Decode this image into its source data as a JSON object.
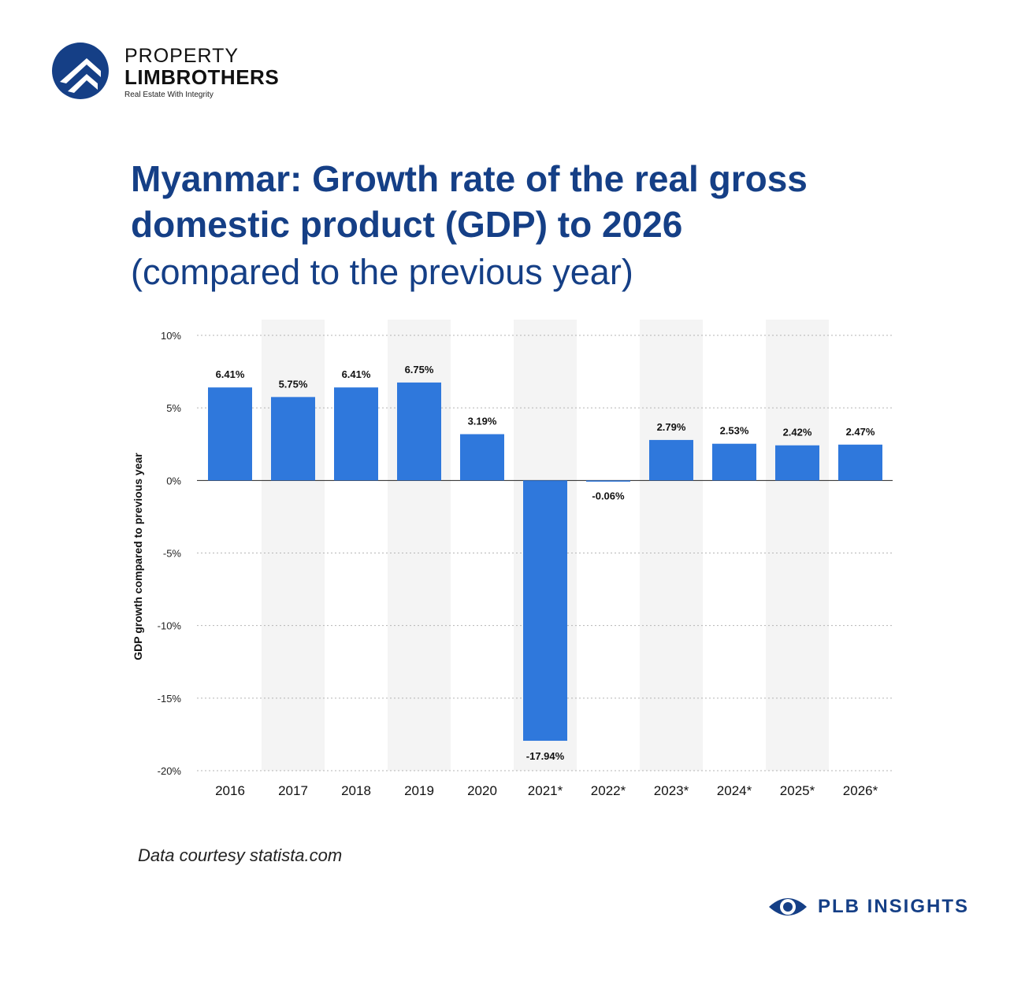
{
  "brand": {
    "line1": "PROPERTY",
    "line2": "LIMBROTHERS",
    "tagline": "Real Estate With Integrity",
    "badge_text": "PLB INSIGHTS",
    "colors": {
      "primary": "#153f86",
      "bar": "#2f78dc"
    }
  },
  "heading": {
    "title": "Myanmar: Growth rate of the real gross domestic product (GDP) to 2026",
    "subtitle": "(compared to the previous year)"
  },
  "source": "Data courtesy statista.com",
  "chart_data": {
    "type": "bar",
    "categories": [
      "2016",
      "2017",
      "2018",
      "2019",
      "2020",
      "2021*",
      "2022*",
      "2023*",
      "2024*",
      "2025*",
      "2026*"
    ],
    "values": [
      6.41,
      5.75,
      6.41,
      6.75,
      3.19,
      -17.94,
      -0.06,
      2.79,
      2.53,
      2.42,
      2.47
    ],
    "data_labels": [
      "6.41%",
      "5.75%",
      "6.41%",
      "6.75%",
      "3.19%",
      "-17.94%",
      "-0.06%",
      "2.79%",
      "2.53%",
      "2.42%",
      "2.47%"
    ],
    "ylabel": "GDP growth compared to previous year",
    "ylim": [
      -20,
      10
    ],
    "yticks": [
      10,
      5,
      0,
      -5,
      -10,
      -15,
      -20
    ],
    "ytick_labels": [
      "10%",
      "5%",
      "0%",
      "-5%",
      "-10%",
      "-15%",
      "-20%"
    ],
    "grid": true,
    "alternating_column_shading": true,
    "bar_color": "#2f78dc"
  }
}
